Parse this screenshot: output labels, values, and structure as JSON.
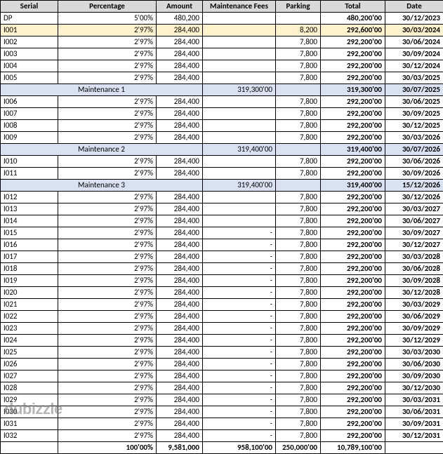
{
  "columns": [
    "Serial",
    "Percentage",
    "Amount",
    "Maintenance Fees",
    "Parking",
    "Total",
    "Date"
  ],
  "colors": {
    "header_bg": "#d9d9d9",
    "highlight_bg": "#fff2cc",
    "section_bg": "#d9e1f2",
    "border": "#000000",
    "text": "#000000"
  },
  "watermark": "dubizzle",
  "rows": [
    {
      "type": "data",
      "serial": "DP",
      "pct": "5'00%",
      "amt": "480,200",
      "maint": "",
      "park": "",
      "total": "480,200'00",
      "date": "30/12/2023"
    },
    {
      "type": "highlight",
      "serial": "I001",
      "pct": "2'97%",
      "amt": "284,400",
      "maint": "",
      "park": "8,200",
      "total": "292,600'00",
      "date": "30/03/2024"
    },
    {
      "type": "data",
      "serial": "I002",
      "pct": "2'97%",
      "amt": "284,400",
      "maint": "",
      "park": "7,800",
      "total": "292,200'00",
      "date": "30/06/2024"
    },
    {
      "type": "data",
      "serial": "I003",
      "pct": "2'97%",
      "amt": "284,400",
      "maint": "",
      "park": "7,800",
      "total": "292,200'00",
      "date": "30/09/2024"
    },
    {
      "type": "data",
      "serial": "I004",
      "pct": "2'97%",
      "amt": "284,400",
      "maint": "",
      "park": "7,800",
      "total": "292,200'00",
      "date": "30/12/2024"
    },
    {
      "type": "data",
      "serial": "I005",
      "pct": "2'97%",
      "amt": "284,400",
      "maint": "",
      "park": "7,800",
      "total": "292,200'00",
      "date": "30/03/2025"
    },
    {
      "type": "section",
      "label": "Maintenance 1",
      "maint": "319,300'00",
      "total": "319,300'00",
      "date": "30/07/2025"
    },
    {
      "type": "data",
      "serial": "I006",
      "pct": "2'97%",
      "amt": "284,400",
      "maint": "",
      "park": "7,800",
      "total": "292,200'00",
      "date": "30/06/2025"
    },
    {
      "type": "data",
      "serial": "I007",
      "pct": "2'97%",
      "amt": "284,400",
      "maint": "",
      "park": "7,800",
      "total": "292,200'00",
      "date": "30/09/2025"
    },
    {
      "type": "data",
      "serial": "I008",
      "pct": "2'97%",
      "amt": "284,400",
      "maint": "",
      "park": "7,800",
      "total": "292,200'00",
      "date": "30/12/2025"
    },
    {
      "type": "data",
      "serial": "I009",
      "pct": "2'97%",
      "amt": "284,400",
      "maint": "",
      "park": "7,800",
      "total": "292,200'00",
      "date": "30/03/2026"
    },
    {
      "type": "section",
      "label": "Maintenance 2",
      "maint": "319,400'00",
      "total": "319,400'00",
      "date": "30/07/2026"
    },
    {
      "type": "data",
      "serial": "I010",
      "pct": "2'97%",
      "amt": "284,400",
      "maint": "",
      "park": "7,800",
      "total": "292,200'00",
      "date": "30/06/2026"
    },
    {
      "type": "data",
      "serial": "I011",
      "pct": "2'97%",
      "amt": "284,400",
      "maint": "",
      "park": "7,800",
      "total": "292,200'00",
      "date": "30/09/2026"
    },
    {
      "type": "section",
      "label": "Maintenance 3",
      "maint": "319,400'00",
      "total": "319,400'00",
      "date": "15/12/2026"
    },
    {
      "type": "data",
      "serial": "I012",
      "pct": "2'97%",
      "amt": "284,400",
      "maint": "",
      "park": "7,800",
      "total": "292,200'00",
      "date": "30/12/2026"
    },
    {
      "type": "data",
      "serial": "I013",
      "pct": "2'97%",
      "amt": "284,400",
      "maint": "",
      "park": "7,800",
      "total": "292,200'00",
      "date": "30/03/2027"
    },
    {
      "type": "data",
      "serial": "I014",
      "pct": "2'97%",
      "amt": "284,400",
      "maint": "",
      "park": "7,800",
      "total": "292,200'00",
      "date": "30/06/2027"
    },
    {
      "type": "data",
      "serial": "I015",
      "pct": "2'97%",
      "amt": "284,400",
      "maint": "-",
      "park": "7,800",
      "total": "292,200'00",
      "date": "30/09/2027"
    },
    {
      "type": "data",
      "serial": "I016",
      "pct": "2'97%",
      "amt": "284,400",
      "maint": "-",
      "park": "7,800",
      "total": "292,200'00",
      "date": "30/12/2027"
    },
    {
      "type": "data",
      "serial": "I017",
      "pct": "2'97%",
      "amt": "284,400",
      "maint": "-",
      "park": "7,800",
      "total": "292,200'00",
      "date": "30/03/2028"
    },
    {
      "type": "data",
      "serial": "I018",
      "pct": "2'97%",
      "amt": "284,400",
      "maint": "-",
      "park": "7,800",
      "total": "292,200'00",
      "date": "30/06/2028"
    },
    {
      "type": "data",
      "serial": "I019",
      "pct": "2'97%",
      "amt": "284,400",
      "maint": "-",
      "park": "7,800",
      "total": "292,200'00",
      "date": "30/09/2028"
    },
    {
      "type": "data",
      "serial": "I020",
      "pct": "2'97%",
      "amt": "284,400",
      "maint": "-",
      "park": "7,800",
      "total": "292,200'00",
      "date": "30/12/2028"
    },
    {
      "type": "data",
      "serial": "I021",
      "pct": "2'97%",
      "amt": "284,400",
      "maint": "-",
      "park": "7,800",
      "total": "292,200'00",
      "date": "30/03/2029"
    },
    {
      "type": "data",
      "serial": "I022",
      "pct": "2'97%",
      "amt": "284,400",
      "maint": "-",
      "park": "7,800",
      "total": "292,200'00",
      "date": "30/06/2029"
    },
    {
      "type": "data",
      "serial": "I023",
      "pct": "2'97%",
      "amt": "284,400",
      "maint": "-",
      "park": "7,800",
      "total": "292,200'00",
      "date": "30/09/2029"
    },
    {
      "type": "data",
      "serial": "I024",
      "pct": "2'97%",
      "amt": "284,400",
      "maint": "-",
      "park": "7,800",
      "total": "292,200'00",
      "date": "30/12/2029"
    },
    {
      "type": "data",
      "serial": "I025",
      "pct": "2'97%",
      "amt": "284,400",
      "maint": "-",
      "park": "7,800",
      "total": "292,200'00",
      "date": "30/03/2030"
    },
    {
      "type": "data",
      "serial": "I026",
      "pct": "2'97%",
      "amt": "284,400",
      "maint": "-",
      "park": "7,800",
      "total": "292,200'00",
      "date": "30/06/2030"
    },
    {
      "type": "data",
      "serial": "I027",
      "pct": "2'97%",
      "amt": "284,400",
      "maint": "-",
      "park": "7,800",
      "total": "292,200'00",
      "date": "30/09/2030"
    },
    {
      "type": "data",
      "serial": "I028",
      "pct": "2'97%",
      "amt": "284,400",
      "maint": "-",
      "park": "7,800",
      "total": "292,200'00",
      "date": "30/12/2030"
    },
    {
      "type": "data",
      "serial": "I029",
      "pct": "2'97%",
      "amt": "284,400",
      "maint": "-",
      "park": "7,800",
      "total": "292,200'00",
      "date": "30/03/2031"
    },
    {
      "type": "data",
      "serial": "I030",
      "pct": "2'97%",
      "amt": "284,400",
      "maint": "-",
      "park": "7,800",
      "total": "292,200'00",
      "date": "30/06/2031"
    },
    {
      "type": "data",
      "serial": "I031",
      "pct": "2'97%",
      "amt": "284,400",
      "maint": "-",
      "park": "7,800",
      "total": "292,200'00",
      "date": "30/09/2031"
    },
    {
      "type": "data",
      "serial": "I032",
      "pct": "2'97%",
      "amt": "284,400",
      "maint": "-",
      "park": "7,800",
      "total": "292,200'00",
      "date": "30/12/2031"
    },
    {
      "type": "totals",
      "serial": "",
      "pct": "100'00%",
      "amt": "9,581,000",
      "maint": "958,100'00",
      "park": "250,000'00",
      "total": "10,789,100'00",
      "date": ""
    }
  ]
}
